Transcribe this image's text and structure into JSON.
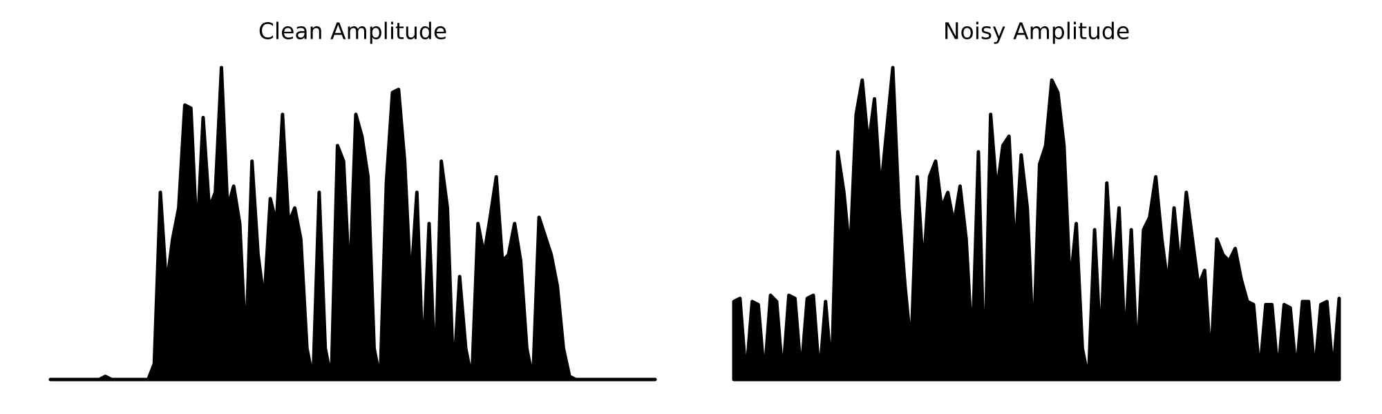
{
  "chart_data": [
    {
      "type": "area",
      "title": "Clean Amplitude",
      "color": "#000000",
      "ylim": [
        0,
        1
      ],
      "values": [
        0,
        0,
        0,
        0,
        0,
        0,
        0,
        0,
        0,
        0.01,
        0,
        0,
        0,
        0,
        0,
        0,
        0,
        0.05,
        0.6,
        0.3,
        0.45,
        0.55,
        0.88,
        0.87,
        0.45,
        0.84,
        0.55,
        0.6,
        1.0,
        0.55,
        0.62,
        0.5,
        0.1,
        0.7,
        0.4,
        0.25,
        0.58,
        0.5,
        0.85,
        0.5,
        0.55,
        0.45,
        0.1,
        0,
        0.6,
        0.1,
        0,
        0.75,
        0.7,
        0.3,
        0.85,
        0.78,
        0.65,
        0.1,
        0,
        0.63,
        0.92,
        0.93,
        0.7,
        0.3,
        0.6,
        0.05,
        0.5,
        0,
        0.7,
        0.55,
        0,
        0.33,
        0.1,
        0,
        0.5,
        0.4,
        0.52,
        0.65,
        0.38,
        0.4,
        0.5,
        0.38,
        0.1,
        0,
        0.52,
        0.46,
        0.4,
        0.3,
        0.1,
        0.01,
        0,
        0,
        0,
        0,
        0,
        0,
        0,
        0,
        0,
        0,
        0,
        0,
        0,
        0
      ]
    },
    {
      "type": "area",
      "title": "Noisy Amplitude",
      "color": "#000000",
      "ylim": [
        0,
        1
      ],
      "values": [
        0.25,
        0.26,
        0.01,
        0.25,
        0.24,
        0.01,
        0.27,
        0.25,
        0.01,
        0.27,
        0.26,
        0.02,
        0.26,
        0.27,
        0.01,
        0.25,
        0.02,
        0.73,
        0.6,
        0.4,
        0.85,
        0.96,
        0.75,
        0.9,
        0.6,
        0.8,
        1.0,
        0.55,
        0.3,
        0.1,
        0.65,
        0.35,
        0.65,
        0.7,
        0.55,
        0.6,
        0.5,
        0.62,
        0.45,
        0.1,
        0.73,
        0,
        0.85,
        0.6,
        0.75,
        0.78,
        0.4,
        0.72,
        0.55,
        0.1,
        0.69,
        0.75,
        0.96,
        0.92,
        0.75,
        0.3,
        0.5,
        0.1,
        0,
        0.48,
        0.1,
        0.63,
        0.3,
        0.55,
        0.1,
        0.48,
        0.05,
        0.48,
        0.52,
        0.65,
        0.45,
        0.3,
        0.55,
        0.35,
        0.6,
        0.45,
        0.3,
        0.35,
        0.05,
        0.45,
        0.4,
        0.38,
        0.42,
        0.32,
        0.25,
        0.24,
        0.02,
        0.24,
        0.24,
        0.02,
        0.24,
        0.23,
        0.02,
        0.25,
        0.25,
        0.02,
        0.24,
        0.25,
        0.02,
        0.26
      ]
    }
  ]
}
